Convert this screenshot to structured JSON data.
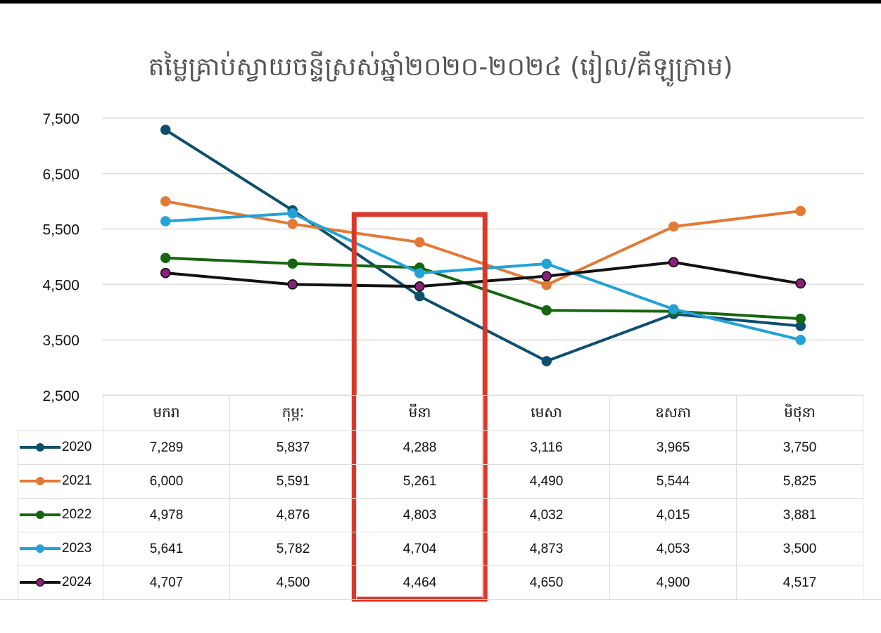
{
  "chart_data": {
    "type": "line",
    "title": "តម្លៃគ្រាប់ស្វាយចន្ទីស្រស់ឆ្នាំ២០២០-២០២៤ (រៀល/គីឡូក្រាម)",
    "categories": [
      "មករា",
      "កុម្ភៈ",
      "មីនា",
      "មេសា",
      "ឧសភា",
      "មិថុនា"
    ],
    "ylim": [
      2500,
      7500
    ],
    "yticks": [
      "7,500",
      "6,500",
      "5,500",
      "4,500",
      "3,500",
      "2,500"
    ],
    "ytick_values": [
      7500,
      6500,
      5500,
      4500,
      3500,
      2500
    ],
    "grid": true,
    "legend": "data-table-left",
    "highlight_category": "មីនា",
    "highlight_color": "#d9382b",
    "series": [
      {
        "name": "2020",
        "color": "#0d4f6e",
        "marker": "#0d4f6e",
        "values": [
          7289,
          5837,
          4288,
          3116,
          3965,
          3750
        ],
        "labels": [
          "7,289",
          "5,837",
          "4,288",
          "3,116",
          "3,965",
          "3,750"
        ]
      },
      {
        "name": "2021",
        "color": "#e27a35",
        "marker": "#e27a35",
        "values": [
          6000,
          5591,
          5261,
          4490,
          5544,
          5825
        ],
        "labels": [
          "6,000",
          "5,591",
          "5,261",
          "4,490",
          "5,544",
          "5,825"
        ]
      },
      {
        "name": "2022",
        "color": "#16650f",
        "marker": "#16650f",
        "values": [
          4978,
          4876,
          4803,
          4032,
          4015,
          3881
        ],
        "labels": [
          "4,978",
          "4,876",
          "4,803",
          "4,032",
          "4,015",
          "3,881"
        ]
      },
      {
        "name": "2023",
        "color": "#22a2d6",
        "marker": "#22a2d6",
        "values": [
          5641,
          5782,
          4704,
          4873,
          4053,
          3500
        ],
        "labels": [
          "5,641",
          "5,782",
          "4,704",
          "4,873",
          "4,053",
          "3,500"
        ]
      },
      {
        "name": "2024",
        "color": "#111111",
        "marker": "#8a1f7a",
        "values": [
          4707,
          4500,
          4464,
          4650,
          4900,
          4517
        ],
        "labels": [
          "4,707",
          "4,500",
          "4,464",
          "4,650",
          "4,900",
          "4,517"
        ]
      }
    ]
  }
}
